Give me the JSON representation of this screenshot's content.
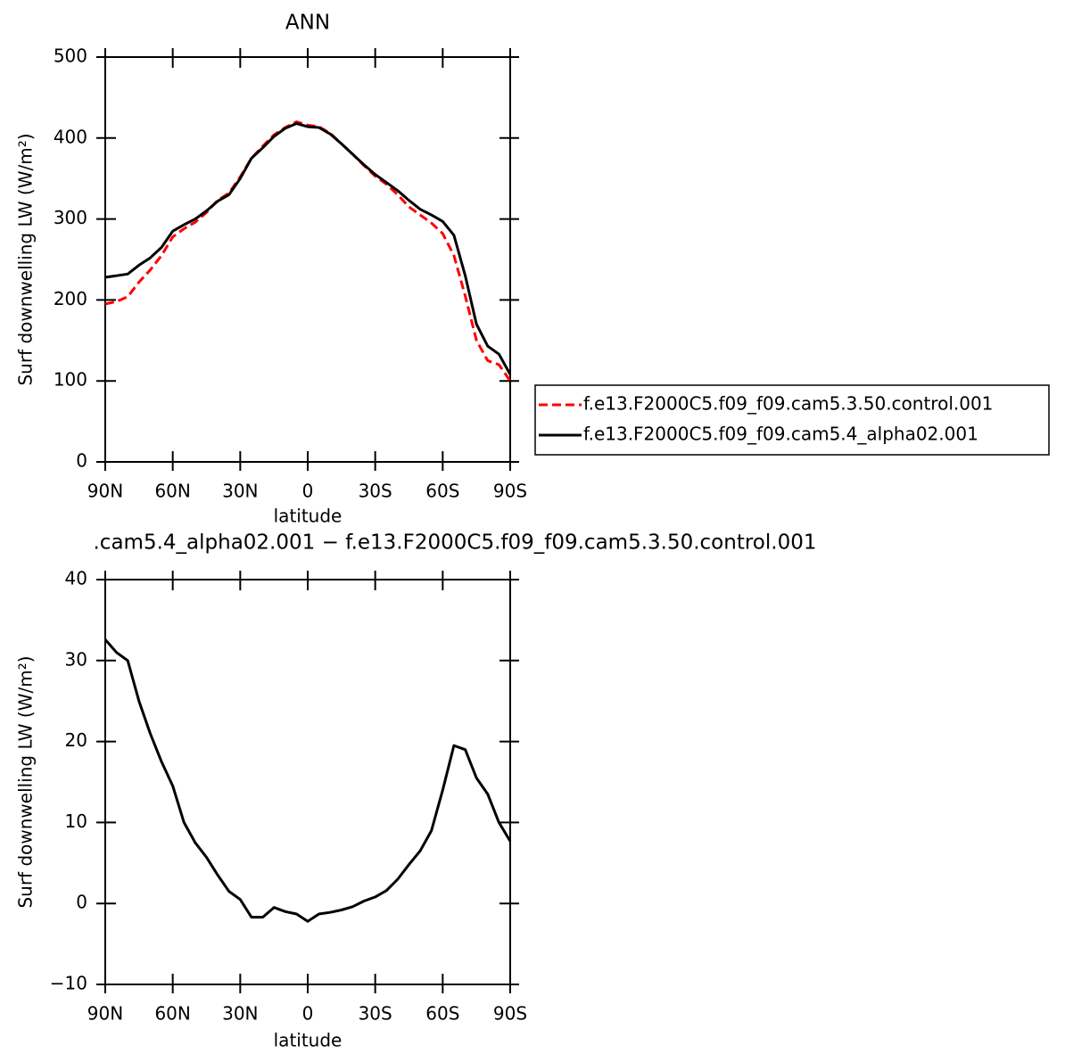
{
  "chart_data": [
    {
      "type": "line",
      "title": "ANN",
      "xlabel": "latitude",
      "ylabel": "Surf downwelling LW (W/m²)",
      "x": [
        90,
        85,
        80,
        75,
        70,
        65,
        60,
        55,
        50,
        45,
        40,
        35,
        30,
        25,
        20,
        15,
        10,
        5,
        0,
        -5,
        -10,
        -15,
        -20,
        -25,
        -30,
        -35,
        -40,
        -45,
        -50,
        -55,
        -60,
        -65,
        -70,
        -75,
        -80,
        -85,
        -90
      ],
      "series": [
        {
          "name": "f.e13.F2000C5.f09_f09.cam5.3.50.control.001",
          "color": "#ff0000",
          "linestyle": "dashed",
          "values": [
            195,
            198,
            204,
            222,
            237,
            255,
            278,
            288,
            296,
            308,
            323,
            332,
            352,
            375,
            390,
            404,
            413,
            420,
            416,
            414,
            406,
            393,
            380,
            366,
            353,
            343,
            330,
            315,
            305,
            295,
            282,
            255,
            205,
            150,
            125,
            120,
            100
          ]
        },
        {
          "name": "f.e13.F2000C5.f09_f09.cam5.4_alpha02.001",
          "color": "#000000",
          "linestyle": "solid",
          "values": [
            228,
            230,
            232,
            243,
            252,
            265,
            285,
            293,
            300,
            310,
            322,
            330,
            350,
            375,
            388,
            402,
            412,
            418,
            414,
            413,
            405,
            393,
            380,
            367,
            355,
            345,
            335,
            323,
            312,
            305,
            297,
            280,
            230,
            170,
            143,
            133,
            108
          ]
        }
      ],
      "xlim": [
        90,
        -90
      ],
      "xticks": [
        {
          "value": 90,
          "label": "90N"
        },
        {
          "value": 60,
          "label": "60N"
        },
        {
          "value": 30,
          "label": "30N"
        },
        0,
        {
          "value": -30,
          "label": "30S"
        },
        {
          "value": -60,
          "label": "60S"
        },
        {
          "value": -90,
          "label": "90S"
        }
      ],
      "ylim": [
        0,
        500
      ],
      "yticks": [
        0,
        100,
        200,
        300,
        400,
        500
      ],
      "legend": "right"
    },
    {
      "type": "line",
      "title": ".cam5.4_alpha02.001 − f.e13.F2000C5.f09_f09.cam5.3.50.control.001",
      "xlabel": "latitude",
      "ylabel": "Surf downwelling LW (W/m²)",
      "x": [
        90,
        85,
        80,
        75,
        70,
        65,
        60,
        55,
        50,
        45,
        40,
        35,
        30,
        25,
        20,
        15,
        10,
        5,
        0,
        -5,
        -10,
        -15,
        -20,
        -25,
        -30,
        -35,
        -40,
        -45,
        -50,
        -55,
        -60,
        -65,
        -70,
        -75,
        -80,
        -85,
        -90
      ],
      "values": [
        32.6,
        31,
        30,
        25,
        21,
        17.5,
        14.5,
        10,
        7.5,
        5.7,
        3.5,
        1.5,
        0.5,
        -1.7,
        -1.7,
        -0.5,
        -1,
        -1.3,
        -2.2,
        -1.3,
        -1.1,
        -0.8,
        -0.4,
        0.3,
        0.8,
        1.6,
        3,
        4.8,
        6.5,
        9,
        14,
        19.5,
        19,
        15.5,
        13.5,
        10,
        7.7
      ],
      "color": "#000000",
      "xlim": [
        90,
        -90
      ],
      "xticks": [
        {
          "value": 90,
          "label": "90N"
        },
        {
          "value": 60,
          "label": "60N"
        },
        {
          "value": 30,
          "label": "30N"
        },
        0,
        {
          "value": -30,
          "label": "30S"
        },
        {
          "value": -60,
          "label": "60S"
        },
        {
          "value": -90,
          "label": "90S"
        }
      ],
      "ylim": [
        -10,
        40
      ],
      "yticks": [
        {
          "value": -10,
          "label": "−10"
        },
        0,
        10,
        20,
        30,
        40
      ]
    }
  ]
}
